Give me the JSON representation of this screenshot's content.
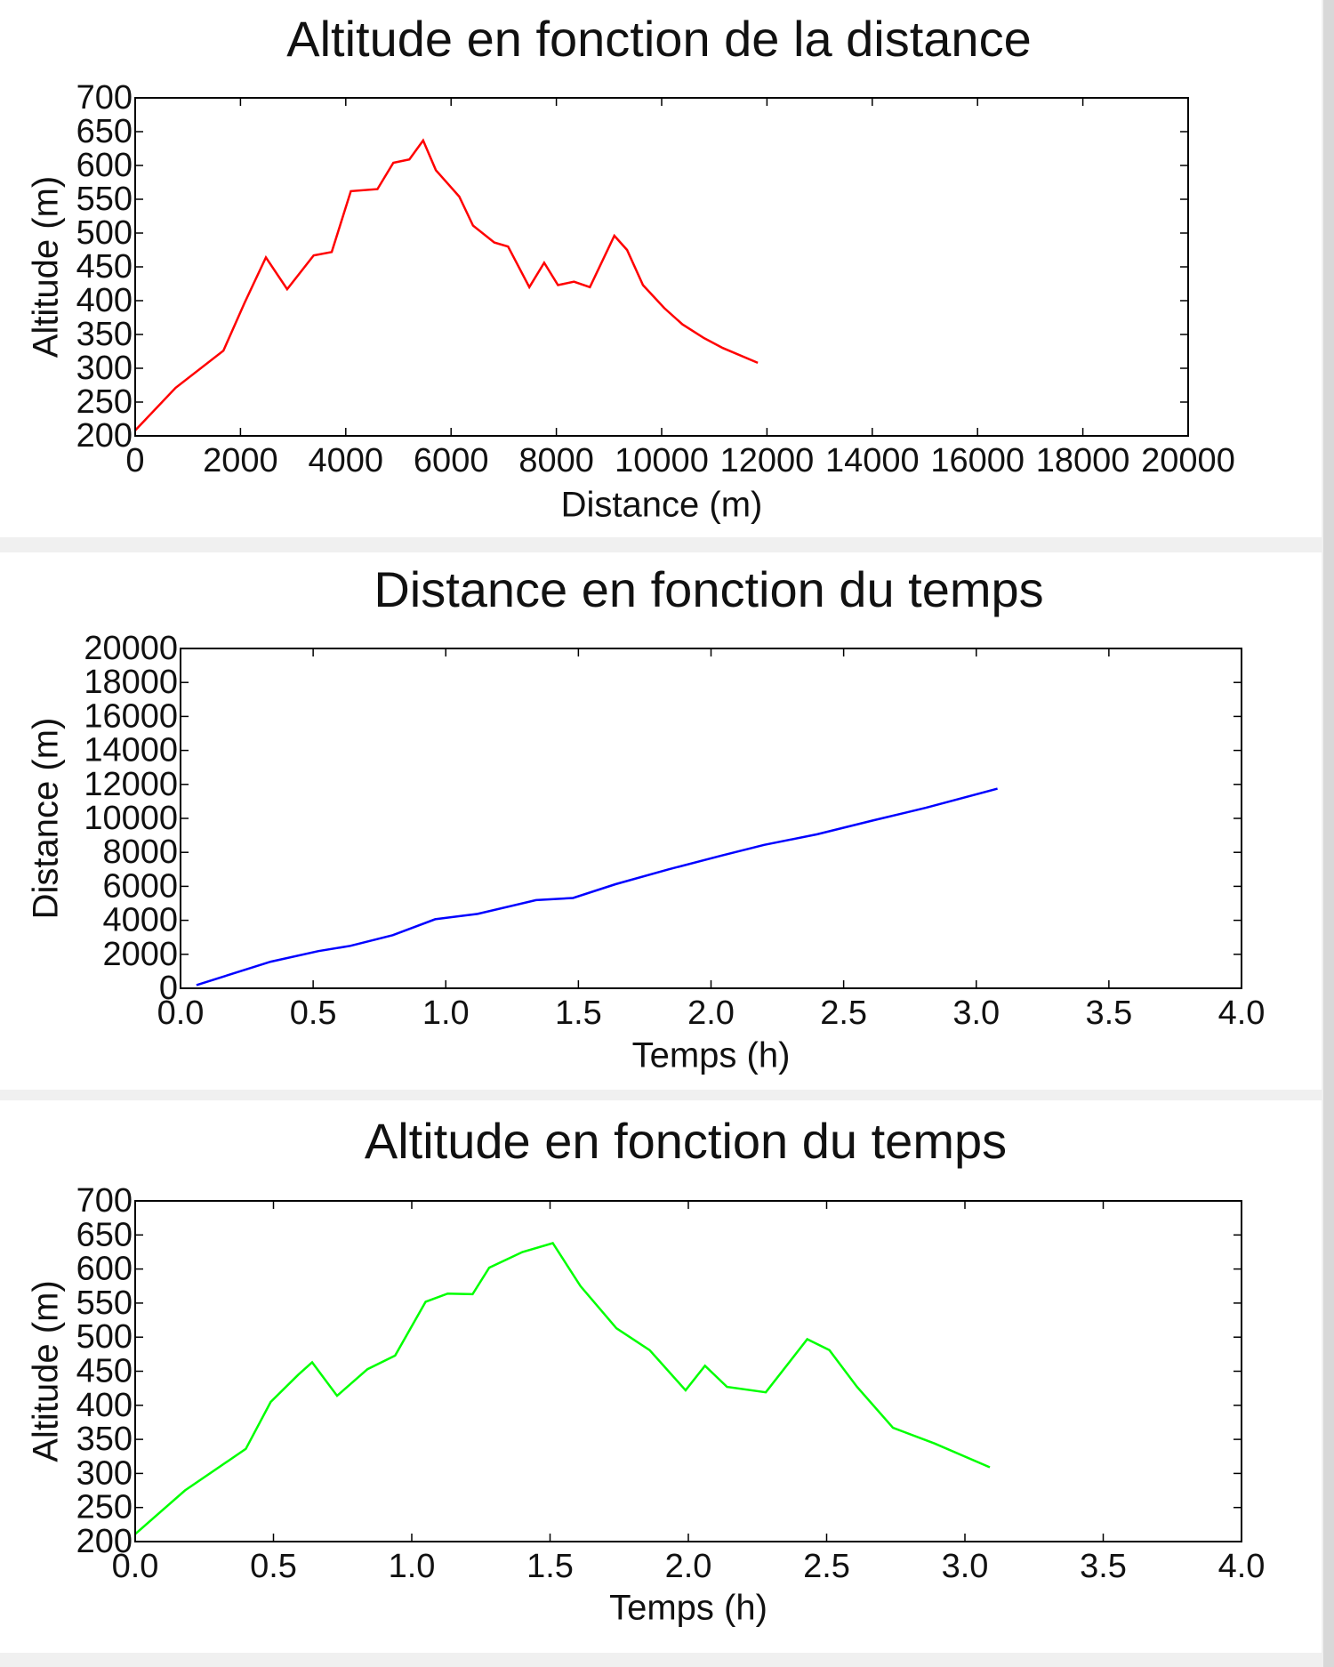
{
  "chart_data": [
    {
      "type": "line",
      "title": "Altitude en fonction de la distance",
      "xlabel": "Distance (m)",
      "ylabel": "Altitude (m)",
      "color": "#ff0000",
      "x": [
        0,
        767,
        1675,
        2079,
        2483,
        2886,
        3390,
        3733,
        4097,
        4601,
        4904,
        5207,
        5469,
        5711,
        6155,
        6417,
        6821,
        7083,
        7486,
        7769,
        8031,
        8334,
        8637,
        9101,
        9343,
        9646,
        10050,
        10393,
        10797,
        11160,
        11826
      ],
      "values": [
        208,
        271,
        326,
        397,
        464,
        417,
        467,
        472,
        562,
        565,
        604,
        609,
        637,
        593,
        554,
        511,
        486,
        480,
        420,
        456,
        423,
        428,
        420,
        496,
        475,
        423,
        389,
        365,
        345,
        330,
        308
      ],
      "xlim": [
        0,
        20000
      ],
      "xticks": [
        0,
        2000,
        4000,
        6000,
        8000,
        10000,
        12000,
        14000,
        16000,
        18000,
        20000
      ],
      "ylim": [
        200,
        700
      ],
      "yticks": [
        200,
        250,
        300,
        350,
        400,
        450,
        500,
        550,
        600,
        650,
        700
      ]
    },
    {
      "type": "line",
      "title": "Distance en fonction du temps",
      "xlabel": "Temps (h)",
      "ylabel": "Distance (m)",
      "color": "#0000ff",
      "x": [
        0.06,
        0.34,
        0.52,
        0.64,
        0.8,
        0.96,
        1.12,
        1.34,
        1.48,
        1.64,
        1.84,
        2.04,
        2.2,
        2.4,
        2.61,
        2.81,
        3.08
      ],
      "values": [
        188,
        1563,
        2188,
        2500,
        3125,
        4063,
        4375,
        5188,
        5313,
        6125,
        7000,
        7813,
        8438,
        9063,
        9875,
        10625,
        11750
      ],
      "xlim": [
        0,
        4
      ],
      "xticks": [
        {
          "value": 0,
          "label": "0.0"
        },
        0.5,
        {
          "value": 1,
          "label": "1.0"
        },
        1.5,
        {
          "value": 2,
          "label": "2.0"
        },
        2.5,
        {
          "value": 3,
          "label": "3.0"
        },
        3.5,
        {
          "value": 4,
          "label": "4.0"
        }
      ],
      "ylim": [
        0,
        20000
      ],
      "yticks": [
        0,
        2000,
        4000,
        6000,
        8000,
        10000,
        12000,
        14000,
        16000,
        18000,
        20000
      ]
    },
    {
      "type": "line",
      "title": "Altitude en fonction du temps",
      "xlabel": "Temps (h)",
      "ylabel": "Altitude (m)",
      "color": "#00ff00",
      "x": [
        0,
        0.18,
        0.4,
        0.49,
        0.59,
        0.64,
        0.73,
        0.84,
        0.94,
        1.05,
        1.13,
        1.22,
        1.28,
        1.4,
        1.51,
        1.61,
        1.74,
        1.86,
        1.99,
        2.06,
        2.14,
        2.28,
        2.43,
        2.51,
        2.61,
        2.74,
        2.89,
        3.09
      ],
      "values": [
        211,
        275,
        336,
        405,
        445,
        463,
        414,
        453,
        473,
        552,
        564,
        563,
        602,
        625,
        638,
        575,
        513,
        481,
        422,
        458,
        427,
        419,
        497,
        481,
        427,
        367,
        344,
        309
      ],
      "xlim": [
        0,
        4
      ],
      "xticks": [
        {
          "value": 0,
          "label": "0.0"
        },
        0.5,
        {
          "value": 1,
          "label": "1.0"
        },
        1.5,
        {
          "value": 2,
          "label": "2.0"
        },
        2.5,
        {
          "value": 3,
          "label": "3.0"
        },
        3.5,
        {
          "value": 4,
          "label": "4.0"
        }
      ],
      "ylim": [
        200,
        700
      ],
      "yticks": [
        200,
        250,
        300,
        350,
        400,
        450,
        500,
        550,
        600,
        650,
        700
      ]
    }
  ]
}
